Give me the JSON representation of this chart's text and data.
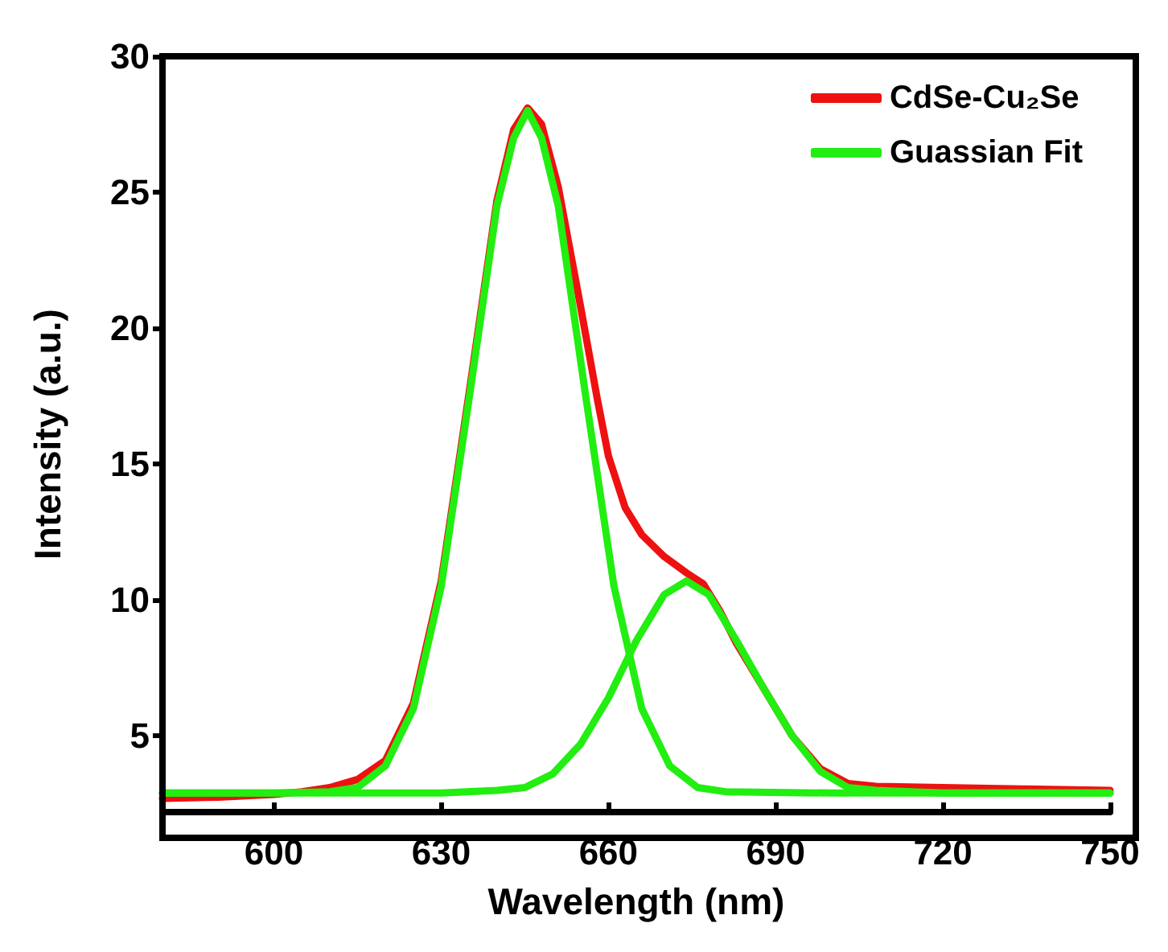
{
  "chart_data": {
    "type": "line",
    "xlabel": "Wavelength (nm)",
    "ylabel": "Intensity (a.u.)",
    "xlim": [
      580,
      750
    ],
    "xticks": [
      600,
      630,
      660,
      690,
      720,
      750
    ],
    "ylim": [
      2.2,
      30
    ],
    "yticks": [
      5,
      10,
      15,
      20,
      25,
      30
    ],
    "grid": false,
    "legend": "top right",
    "marker": "none",
    "line_style": "solid",
    "series": [
      {
        "name": "CdSe-Cu₂Se",
        "color": "#ee1111",
        "x": [
          580,
          590,
          600,
          605,
          610,
          615,
          620,
          625,
          630,
          635,
          640,
          643,
          645.5,
          648,
          651,
          655,
          658,
          660,
          663,
          666,
          670,
          674,
          677,
          680,
          683,
          688,
          693,
          698,
          703,
          708,
          720,
          735,
          750
        ],
        "values": [
          2.7,
          2.75,
          2.85,
          2.95,
          3.1,
          3.4,
          4.1,
          6.2,
          10.7,
          17.6,
          24.7,
          27.3,
          28.1,
          27.5,
          25.2,
          20.8,
          17.4,
          15.3,
          13.4,
          12.4,
          11.6,
          11.0,
          10.6,
          9.6,
          8.4,
          6.7,
          5.0,
          3.8,
          3.25,
          3.15,
          3.1,
          3.05,
          3.0
        ]
      },
      {
        "name": "Guassian Fit",
        "color": "#22ee11",
        "x": [
          580,
          600,
          610,
          615,
          620,
          625,
          630,
          635,
          640,
          643,
          645.5,
          648,
          651,
          656,
          661,
          666,
          671,
          676,
          681,
          700,
          750
        ],
        "values": [
          2.9,
          2.9,
          2.95,
          3.1,
          3.9,
          6.0,
          10.5,
          17.4,
          24.5,
          27.0,
          28.0,
          27.0,
          24.5,
          17.4,
          10.5,
          6.0,
          3.9,
          3.1,
          2.95,
          2.9,
          2.9
        ]
      },
      {
        "color": "#22ee11",
        "x": [
          580,
          630,
          640,
          645,
          650,
          655,
          660,
          665,
          670,
          674,
          678,
          683,
          688,
          693,
          698,
          703,
          708,
          720,
          750
        ],
        "values": [
          2.9,
          2.9,
          3.0,
          3.1,
          3.6,
          4.7,
          6.4,
          8.5,
          10.2,
          10.7,
          10.2,
          8.5,
          6.7,
          5.0,
          3.7,
          3.1,
          3.0,
          2.9,
          2.9
        ]
      }
    ]
  }
}
